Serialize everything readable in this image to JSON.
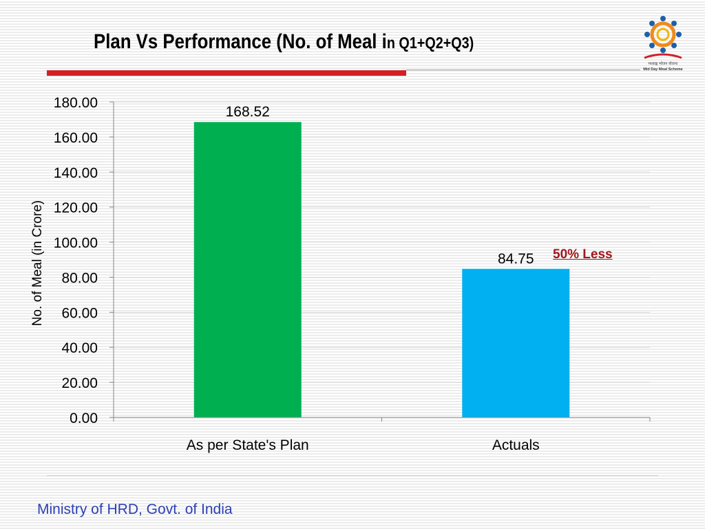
{
  "slide": {
    "title_main": "Plan Vs Performance (No. of Meal i",
    "title_tail": "n Q1+Q2+Q3)",
    "footer": "Ministry of HRD, Govt. of India",
    "logo_text_line1": "मध्याह्न भोजन योजना",
    "logo_text_line2": "Mid Day Meal Scheme",
    "annotation": "50%  Less"
  },
  "colors": {
    "accent_rule": "#d21f26",
    "footer_text": "#2b3fb3",
    "annotation": "#a0161c"
  },
  "chart_data": {
    "type": "bar",
    "categories": [
      "As per State's Plan",
      "Actuals"
    ],
    "values": [
      168.52,
      84.75
    ],
    "data_labels": [
      "168.52",
      "84.75"
    ],
    "colors": [
      "#00b050",
      "#00b0f0"
    ],
    "ylabel": "No. of Meal  (in Crore)",
    "xlabel": "",
    "ylim": [
      0,
      180
    ],
    "yticks": [
      "0.00",
      "20.00",
      "40.00",
      "60.00",
      "80.00",
      "100.00",
      "120.00",
      "140.00",
      "160.00",
      "180.00"
    ],
    "grid": true
  }
}
